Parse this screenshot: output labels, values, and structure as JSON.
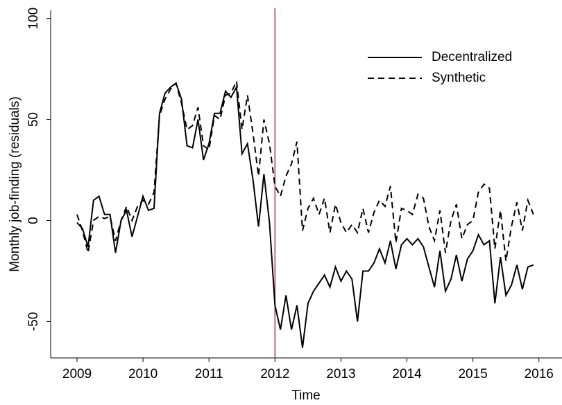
{
  "chart_data": {
    "type": "line",
    "xlabel": "Time",
    "ylabel": "Monthly job-finding (residuals)",
    "x": [
      2009,
      2009.083,
      2009.167,
      2009.25,
      2009.333,
      2009.417,
      2009.5,
      2009.583,
      2009.667,
      2009.75,
      2009.833,
      2009.917,
      2010,
      2010.083,
      2010.167,
      2010.25,
      2010.333,
      2010.417,
      2010.5,
      2010.583,
      2010.667,
      2010.75,
      2010.833,
      2010.917,
      2011,
      2011.083,
      2011.167,
      2011.25,
      2011.333,
      2011.417,
      2011.5,
      2011.583,
      2011.667,
      2011.75,
      2011.833,
      2011.917,
      2012,
      2012.083,
      2012.167,
      2012.25,
      2012.333,
      2012.417,
      2012.5,
      2012.583,
      2012.667,
      2012.75,
      2012.833,
      2012.917,
      2013,
      2013.083,
      2013.167,
      2013.25,
      2013.333,
      2013.417,
      2013.5,
      2013.583,
      2013.667,
      2013.75,
      2013.833,
      2013.917,
      2014,
      2014.083,
      2014.167,
      2014.25,
      2014.333,
      2014.417,
      2014.5,
      2014.583,
      2014.667,
      2014.75,
      2014.833,
      2014.917,
      2015,
      2015.083,
      2015.167,
      2015.25,
      2015.333,
      2015.417,
      2015.5,
      2015.583,
      2015.667,
      2015.75,
      2015.833,
      2015.917
    ],
    "series": [
      {
        "name": "Decentralized",
        "color": "#000000",
        "dash": "solid",
        "values": [
          -1,
          -4,
          -13,
          10,
          12,
          3,
          3,
          -16,
          0,
          5,
          -8,
          2,
          12,
          5,
          6,
          53,
          63,
          66,
          68,
          60,
          37,
          36,
          50,
          30,
          38,
          53,
          53,
          64,
          61,
          66,
          33,
          38,
          20,
          -3,
          23,
          -1,
          -42,
          -54,
          -37,
          -54,
          -42,
          -63,
          -41,
          -35,
          -31,
          -27,
          -33,
          -23,
          -30,
          -25,
          -29,
          -50,
          -25,
          -25,
          -21,
          -14,
          -21,
          -10,
          -24,
          -12,
          -9,
          -12,
          -9,
          -13,
          -23,
          -33,
          -15,
          -35,
          -29,
          -17,
          -30,
          -19,
          -15,
          -7,
          -12,
          -10,
          -41,
          -18,
          -37,
          -32,
          -22,
          -34,
          -23,
          -22
        ]
      },
      {
        "name": "Synthetic",
        "color": "#000000",
        "dash": "dashed",
        "values": [
          3,
          -5,
          -16,
          0,
          2,
          1,
          2,
          -10,
          0,
          7,
          0,
          7,
          10,
          8,
          14,
          52,
          60,
          65,
          68,
          58,
          45,
          47,
          56,
          37,
          35,
          52,
          50,
          62,
          63,
          69,
          45,
          62,
          43,
          22,
          50,
          38,
          17,
          12,
          22,
          28,
          39,
          -5,
          6,
          11,
          3,
          11,
          -6,
          8,
          -1,
          -6,
          -2,
          -6,
          6,
          -6,
          4,
          10,
          7,
          17,
          -11,
          6,
          5,
          3,
          13,
          11,
          -3,
          -10,
          5,
          -16,
          0,
          8,
          -9,
          -2,
          0,
          14,
          18,
          16,
          -14,
          5,
          -20,
          -3,
          9,
          -5,
          10,
          3
        ]
      }
    ],
    "vline": {
      "x": 2012,
      "color": "#b5304f"
    },
    "xlim": [
      2008.6,
      2016.35
    ],
    "xticks": [
      2009,
      2010,
      2011,
      2012,
      2013,
      2014,
      2015,
      2016
    ],
    "ylim": [
      -68,
      104
    ],
    "yticks": [
      -50,
      0,
      50,
      100
    ],
    "legend": "top-right",
    "grid": false
  }
}
